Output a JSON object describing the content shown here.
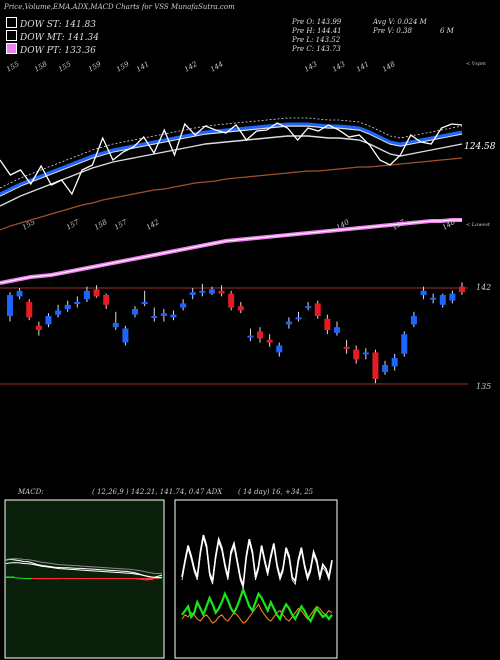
{
  "title": "Price,Volume,EMA,ADX,MACD Charts for VSS MunafaSutra.com",
  "legend": [
    {
      "label": "DOW ST: 141.83",
      "color": "#000000"
    },
    {
      "label": "DOW MT: 141.34",
      "color": "#000000"
    },
    {
      "label": "DOW PT: 133.36",
      "color": "#ee82ee"
    }
  ],
  "stats": {
    "open": "Pre  O: 143.99",
    "high": "Pre  H: 144.41",
    "low": "Pre  L: 143.52",
    "close": "Pre  C: 143.73",
    "avg_vol": "Avg V: 0.024  M",
    "pre_vol": "Pre  V: 0.38",
    "vol_unit": "6  M"
  },
  "panel_labels": {
    "upper_right": "< Vspm",
    "lower_right": "< Lowest",
    "ema_value": "124.58",
    "price_level_1": "142",
    "price_level_2": "135"
  },
  "macd_label": "MACD:",
  "macd_values": "( 12,26,9 ) 142.21, 141.74, 0.47 ADX",
  "adx_values": "( 14  day) 16,  +34,  25",
  "chart_data": {
    "type": "line",
    "top_ticks": [
      "155",
      "158",
      "155",
      "159",
      "159",
      "141",
      "142",
      "144",
      "143",
      "143",
      "141",
      "148"
    ],
    "bottom_ticks": [
      "155",
      "157",
      "158",
      "157",
      "142",
      "140",
      "137",
      "148"
    ],
    "price_line": [
      160,
      175,
      170,
      184,
      166,
      185,
      180,
      194,
      170,
      165,
      138,
      160,
      152,
      147,
      137,
      153,
      130,
      155,
      124,
      135,
      126,
      130,
      133,
      125,
      140,
      131,
      130,
      123,
      128,
      140,
      128,
      131,
      125,
      130,
      137,
      135,
      145,
      160,
      165,
      155,
      135,
      142,
      144,
      128,
      124,
      125
    ],
    "ema_short": [
      200,
      195,
      190,
      186,
      182,
      178,
      174,
      170,
      166,
      162,
      159,
      156,
      154,
      152,
      150,
      148,
      146,
      144,
      142,
      140,
      138,
      137,
      136,
      135,
      134,
      133,
      132,
      131,
      130,
      130,
      130,
      131,
      132,
      132,
      133,
      134,
      138,
      143,
      148,
      150,
      148,
      146,
      144,
      142,
      140,
      138
    ],
    "ema_pt": [
      230,
      226,
      223,
      220,
      217,
      214,
      211,
      208,
      205,
      203,
      200,
      198,
      196,
      194,
      192,
      190,
      189,
      187,
      185,
      183,
      182,
      181,
      179,
      178,
      177,
      176,
      175,
      174,
      173,
      172,
      171,
      171,
      170,
      169,
      168,
      167,
      167,
      166,
      165,
      164,
      163,
      162,
      161,
      160,
      159,
      158
    ],
    "ema_long": [
      268,
      266,
      264,
      262,
      261,
      260,
      258,
      256,
      254,
      252,
      250,
      248,
      246,
      244,
      242,
      240,
      238,
      236,
      234,
      232,
      230,
      228,
      226,
      225,
      224,
      223,
      222,
      221,
      220,
      219,
      218,
      217,
      216,
      215,
      214,
      213,
      212,
      211,
      210,
      209,
      208,
      207,
      206,
      206,
      205,
      205
    ],
    "candles": [
      {
        "o": 140,
        "c": 141.5,
        "h": 141.7,
        "l": 139.6,
        "up": true
      },
      {
        "o": 141.4,
        "c": 141.8,
        "h": 142,
        "l": 141.2,
        "up": true
      },
      {
        "o": 141,
        "c": 139.9,
        "h": 141.2,
        "l": 139.7,
        "up": false
      },
      {
        "o": 139.3,
        "c": 139,
        "h": 139.6,
        "l": 138.6,
        "up": false
      },
      {
        "o": 139.4,
        "c": 140,
        "h": 140.2,
        "l": 139.2,
        "up": true
      },
      {
        "o": 140.1,
        "c": 140.4,
        "h": 140.8,
        "l": 139.9,
        "up": true
      },
      {
        "o": 140.5,
        "c": 140.8,
        "h": 141.1,
        "l": 140.3,
        "up": true
      },
      {
        "o": 140.9,
        "c": 141,
        "h": 141.4,
        "l": 140.6,
        "up": true
      },
      {
        "o": 141.2,
        "c": 141.8,
        "h": 142.1,
        "l": 141,
        "up": true
      },
      {
        "o": 141.9,
        "c": 141.4,
        "h": 142.2,
        "l": 141.3,
        "up": false
      },
      {
        "o": 141.5,
        "c": 140.8,
        "h": 141.6,
        "l": 140.5,
        "up": false
      },
      {
        "o": 139.2,
        "c": 139.5,
        "h": 140.3,
        "l": 139,
        "up": true
      },
      {
        "o": 138.1,
        "c": 139.1,
        "h": 139.3,
        "l": 137.9,
        "up": true
      },
      {
        "o": 140.1,
        "c": 140.5,
        "h": 140.7,
        "l": 139.9,
        "up": true
      },
      {
        "o": 140.9,
        "c": 141,
        "h": 141.8,
        "l": 140.7,
        "up": true
      },
      {
        "o": 139.9,
        "c": 140,
        "h": 140.6,
        "l": 139.6,
        "up": true
      },
      {
        "o": 140,
        "c": 140.2,
        "h": 140.5,
        "l": 139.6,
        "up": true
      },
      {
        "o": 139.9,
        "c": 140.1,
        "h": 140.4,
        "l": 139.7,
        "up": true
      },
      {
        "o": 140.6,
        "c": 140.9,
        "h": 141.2,
        "l": 140.4,
        "up": true
      },
      {
        "o": 141.5,
        "c": 141.7,
        "h": 142,
        "l": 141.2,
        "up": true
      },
      {
        "o": 141.7,
        "c": 141.8,
        "h": 142.3,
        "l": 141.4,
        "up": true
      },
      {
        "o": 141.6,
        "c": 141.9,
        "h": 142.1,
        "l": 141.5,
        "up": true
      },
      {
        "o": 141.8,
        "c": 141.6,
        "h": 142.2,
        "l": 141.4,
        "up": false
      },
      {
        "o": 141.6,
        "c": 140.6,
        "h": 141.8,
        "l": 140.4,
        "up": false
      },
      {
        "o": 140.7,
        "c": 140.4,
        "h": 141,
        "l": 140.2,
        "up": false
      },
      {
        "o": 138.5,
        "c": 138.6,
        "h": 139.1,
        "l": 138.2,
        "up": true
      },
      {
        "o": 138.9,
        "c": 138.4,
        "h": 139.2,
        "l": 138.1,
        "up": false
      },
      {
        "o": 138.3,
        "c": 138.1,
        "h": 138.7,
        "l": 137.8,
        "up": false
      },
      {
        "o": 137.4,
        "c": 137.9,
        "h": 138.1,
        "l": 137.1,
        "up": true
      },
      {
        "o": 139.4,
        "c": 139.6,
        "h": 139.9,
        "l": 139.1,
        "up": true
      },
      {
        "o": 139.8,
        "c": 139.9,
        "h": 140.3,
        "l": 139.6,
        "up": true
      },
      {
        "o": 140.6,
        "c": 140.7,
        "h": 141,
        "l": 140.4,
        "up": true
      },
      {
        "o": 140.9,
        "c": 140,
        "h": 141.1,
        "l": 139.8,
        "up": false
      },
      {
        "o": 139.8,
        "c": 139,
        "h": 140.1,
        "l": 138.7,
        "up": false
      },
      {
        "o": 138.8,
        "c": 139.2,
        "h": 139.6,
        "l": 138.6,
        "up": true
      },
      {
        "o": 137.8,
        "c": 137.7,
        "h": 138.3,
        "l": 137.3,
        "up": false
      },
      {
        "o": 137.6,
        "c": 136.9,
        "h": 137.9,
        "l": 136.6,
        "up": false
      },
      {
        "o": 137.3,
        "c": 137.4,
        "h": 137.7,
        "l": 136.9,
        "up": true
      },
      {
        "o": 137.4,
        "c": 135.5,
        "h": 137.6,
        "l": 135.2,
        "up": false
      },
      {
        "o": 136,
        "c": 136.5,
        "h": 136.8,
        "l": 135.8,
        "up": true
      },
      {
        "o": 136.4,
        "c": 137,
        "h": 137.3,
        "l": 136.1,
        "up": true
      },
      {
        "o": 137.3,
        "c": 138.7,
        "h": 138.9,
        "l": 137.1,
        "up": true
      },
      {
        "o": 139.4,
        "c": 140,
        "h": 140.3,
        "l": 139.2,
        "up": true
      },
      {
        "o": 141.5,
        "c": 141.8,
        "h": 142.1,
        "l": 141.2,
        "up": true
      },
      {
        "o": 141.2,
        "c": 141.3,
        "h": 141.6,
        "l": 140.9,
        "up": true
      },
      {
        "o": 140.8,
        "c": 141.5,
        "h": 141.6,
        "l": 140.6,
        "up": true
      },
      {
        "o": 141.1,
        "c": 141.6,
        "h": 141.8,
        "l": 140.9,
        "up": true
      },
      {
        "o": 142.1,
        "c": 141.7,
        "h": 142.4,
        "l": 141.5,
        "up": false
      }
    ],
    "macd_line": [
      0.6,
      0.62,
      0.6,
      0.58,
      0.55,
      0.54,
      0.5,
      0.45,
      0.42,
      0.4,
      0.38,
      0.36,
      0.35,
      0.34,
      0.34,
      0.33,
      0.32,
      0.32,
      0.31,
      0.3,
      0.29,
      0.28,
      0.27,
      0.26,
      0.25,
      0.24,
      0.23,
      0.22,
      0.2,
      0.17,
      0.13,
      0.08,
      0.04,
      0.02,
      0.05,
      0.1
    ],
    "macd_signal": [
      0.55,
      0.57,
      0.58,
      0.57,
      0.55,
      0.54,
      0.52,
      0.49,
      0.46,
      0.44,
      0.42,
      0.4,
      0.38,
      0.37,
      0.36,
      0.35,
      0.34,
      0.33,
      0.32,
      0.31,
      0.3,
      0.29,
      0.28,
      0.27,
      0.26,
      0.25,
      0.24,
      0.23,
      0.22,
      0.2,
      0.18,
      0.15,
      0.12,
      0.09,
      0.08,
      0.09
    ],
    "macd_hist": [
      0.05,
      0.05,
      0.02,
      0.01,
      0,
      0,
      -0.02,
      -0.04,
      -0.04,
      -0.04,
      -0.04,
      -0.04,
      -0.03,
      -0.03,
      -0.02,
      -0.02,
      -0.02,
      -0.01,
      -0.01,
      -0.01,
      -0.01,
      -0.01,
      -0.01,
      -0.01,
      -0.01,
      -0.01,
      -0.01,
      -0.01,
      -0.02,
      -0.03,
      -0.05,
      -0.07,
      -0.08,
      -0.07,
      -0.03,
      0.01
    ],
    "adx_white": [
      30,
      38,
      45,
      40,
      34,
      30,
      42,
      50,
      45,
      32,
      28,
      40,
      48,
      44,
      36,
      30,
      42,
      46,
      38,
      30,
      26,
      40,
      48,
      42,
      30,
      35,
      45,
      38,
      32,
      40,
      46,
      36,
      30,
      34,
      44,
      40,
      30,
      28,
      38,
      44,
      36,
      30,
      34,
      42,
      38,
      30,
      36,
      34,
      30,
      38
    ],
    "adx_green": [
      12,
      14,
      16,
      11,
      13,
      18,
      15,
      12,
      16,
      20,
      17,
      13,
      15,
      18,
      22,
      19,
      15,
      13,
      16,
      20,
      24,
      20,
      16,
      14,
      18,
      22,
      20,
      17,
      14,
      18,
      15,
      12,
      10,
      14,
      17,
      15,
      12,
      10,
      13,
      16,
      14,
      11,
      9,
      12,
      15,
      13,
      11,
      12,
      10,
      12
    ],
    "adx_orange": [
      10,
      12,
      11,
      13,
      12,
      10,
      9,
      11,
      12,
      10,
      8,
      9,
      11,
      12,
      10,
      9,
      11,
      13,
      12,
      10,
      8,
      9,
      11,
      13,
      15,
      17,
      14,
      12,
      10,
      9,
      11,
      13,
      14,
      12,
      10,
      9,
      11,
      13,
      15,
      14,
      12,
      10,
      12,
      14,
      16,
      15,
      13,
      12,
      14,
      13
    ]
  }
}
